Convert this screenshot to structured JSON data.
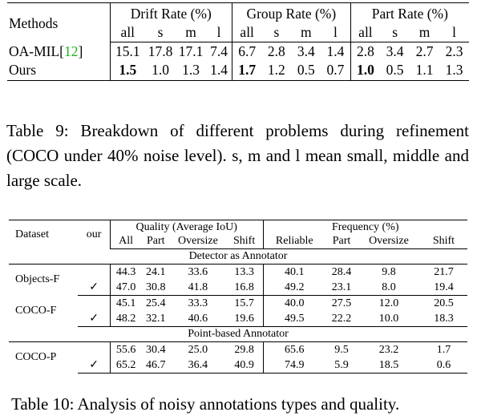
{
  "table9": {
    "group_headers": [
      "Drift Rate (%)",
      "Group Rate (%)",
      "Part Rate (%)"
    ],
    "methods_header": "Methods",
    "sub_headers": [
      "all",
      "s",
      "m",
      "l"
    ],
    "rows": [
      {
        "method": "OA-MIL[",
        "ref": "12",
        "method_end": "]",
        "values": [
          "15.1",
          "17.8",
          "17.1",
          "7.4",
          "6.7",
          "2.8",
          "3.4",
          "1.4",
          "2.8",
          "3.4",
          "2.7",
          "2.3"
        ]
      },
      {
        "method": "Ours",
        "values": [
          "1.5",
          "1.0",
          "1.3",
          "1.4",
          "1.7",
          "1.2",
          "0.5",
          "0.7",
          "1.0",
          "0.5",
          "1.1",
          "1.3"
        ]
      }
    ],
    "caption": "Table 9: Breakdown of different problems during refinement (COCO under 40% noise level). s, m and l mean small, middle and large scale."
  },
  "table10": {
    "dataset_header": "Dataset",
    "our_header": "our",
    "quality_header": "Quality (Average IoU)",
    "frequency_header": "Frequency (%)",
    "quality_cols": [
      "All",
      "Part",
      "Oversize",
      "Shift"
    ],
    "frequency_cols": [
      "Reliable",
      "Part",
      "Oversize",
      "Shift"
    ],
    "section1": "Detector as Annotator",
    "section2": "Point-based Annotator",
    "check": "✓",
    "datasets": [
      {
        "name": "Objects-F",
        "rows": [
          [
            "44.3",
            "24.1",
            "33.6",
            "13.3",
            "40.1",
            "28.4",
            "9.8",
            "21.7"
          ],
          [
            "47.0",
            "30.8",
            "41.8",
            "16.8",
            "49.2",
            "23.1",
            "8.0",
            "19.4"
          ]
        ]
      },
      {
        "name": "COCO-F",
        "rows": [
          [
            "45.1",
            "25.4",
            "33.3",
            "15.7",
            "40.0",
            "27.5",
            "12.0",
            "20.5"
          ],
          [
            "48.2",
            "32.1",
            "40.6",
            "19.6",
            "49.5",
            "22.2",
            "10.0",
            "18.3"
          ]
        ]
      },
      {
        "name": "COCO-P",
        "rows": [
          [
            "55.6",
            "30.4",
            "25.0",
            "29.8",
            "65.6",
            "9.5",
            "23.2",
            "1.7"
          ],
          [
            "65.2",
            "46.7",
            "36.4",
            "40.9",
            "74.9",
            "5.9",
            "18.5",
            "0.6"
          ]
        ]
      }
    ],
    "caption": "Table 10: Analysis of noisy annotations types and quality."
  }
}
